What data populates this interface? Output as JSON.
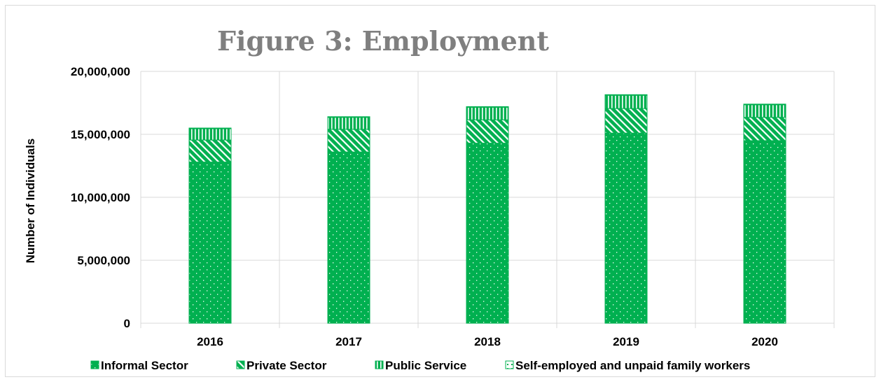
{
  "chart_data": {
    "type": "bar",
    "stacked": true,
    "title": "Figure 3: Employment",
    "xlabel": "",
    "ylabel": "Number of Individuals",
    "categories": [
      "2016",
      "2017",
      "2018",
      "2019",
      "2020"
    ],
    "ylim": [
      0,
      20000000
    ],
    "yticks": [
      "0",
      "5,000,000",
      "10,000,000",
      "15,000,000",
      "20,000,000"
    ],
    "ytick_values": [
      0,
      5000000,
      10000000,
      15000000,
      20000000
    ],
    "grid": true,
    "legend_position": "bottom",
    "series": [
      {
        "name": "Informal Sector",
        "values": [
          12800000,
          13600000,
          14300000,
          15100000,
          14500000
        ],
        "pattern": "dots",
        "color": "#00b050"
      },
      {
        "name": "Private Sector",
        "values": [
          1750000,
          1800000,
          1850000,
          1950000,
          1850000
        ],
        "pattern": "diagonal",
        "color": "#00b050"
      },
      {
        "name": "Public Service",
        "values": [
          900000,
          950000,
          1000000,
          1050000,
          1000000
        ],
        "pattern": "vertical",
        "color": "#00b050"
      },
      {
        "name": "Self-employed and unpaid family workers",
        "values": [
          50000,
          50000,
          50000,
          50000,
          50000
        ],
        "pattern": "box",
        "color": "#00b050"
      }
    ]
  }
}
